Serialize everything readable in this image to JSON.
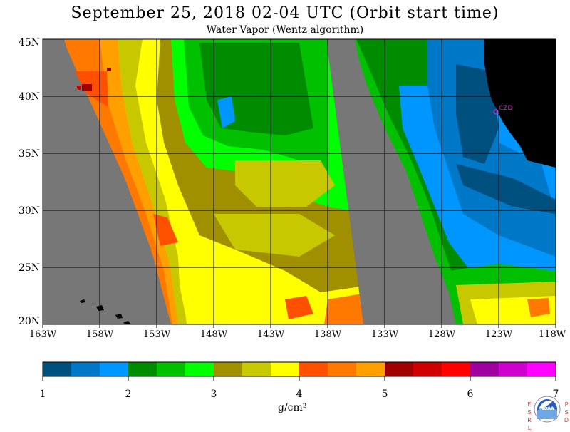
{
  "title": "September 25, 2018  02-04 UTC  (Orbit start time)",
  "subtitle": "Water Vapor (Wentz algorithm)",
  "lat_labels": [
    "45N",
    "40N",
    "35N",
    "30N",
    "25N",
    "20N"
  ],
  "lon_labels": [
    "163W",
    "158W",
    "153W",
    "148W",
    "143W",
    "138W",
    "133W",
    "128W",
    "123W",
    "118W"
  ],
  "colorbar": {
    "ticks": [
      "1",
      "2",
      "3",
      "4",
      "5",
      "6",
      "7"
    ],
    "units": "g/cm²",
    "colors": [
      "#00507f",
      "#0078c8",
      "#0096ff",
      "#008c00",
      "#00c000",
      "#00ff00",
      "#a09000",
      "#c8c800",
      "#ffff00",
      "#ff5000",
      "#ff7800",
      "#ffa000",
      "#a00000",
      "#d00000",
      "#ff0000",
      "#a000a0",
      "#d000d0",
      "#ff00ff"
    ]
  },
  "station": "CZD",
  "logo": {
    "left": "ESRL",
    "right": "PSD",
    "center": "NOAA"
  },
  "colors": {
    "nodata": "#777777",
    "land": "#000000",
    "grid": "#000000"
  }
}
